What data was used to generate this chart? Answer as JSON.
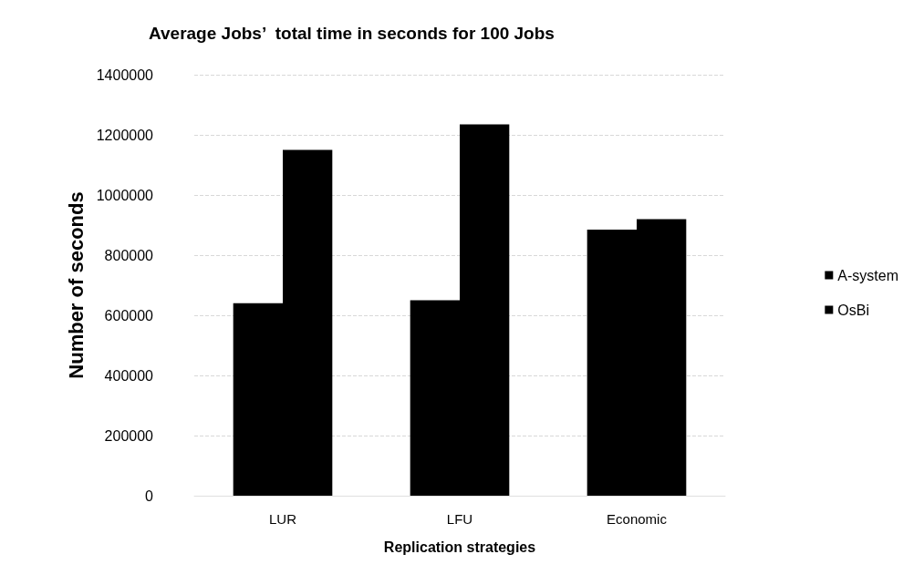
{
  "chart_data": {
    "type": "bar",
    "title": "Average Jobs’  total time in seconds for 100 Jobs",
    "xlabel": "Replication strategies",
    "ylabel": "Number of seconds",
    "categories": [
      "LUR",
      "LFU",
      "Economic"
    ],
    "series": [
      {
        "name": "A-system",
        "color": "#000000",
        "values": [
          640000,
          650000,
          885000
        ]
      },
      {
        "name": "OsBi",
        "color": "#000000",
        "values": [
          1150000,
          1235000,
          920000
        ]
      }
    ],
    "ylim": [
      0,
      1400000
    ],
    "yticks": [
      0,
      200000,
      400000,
      600000,
      800000,
      1000000,
      1200000,
      1400000
    ],
    "grid": "y",
    "legend": "right"
  }
}
